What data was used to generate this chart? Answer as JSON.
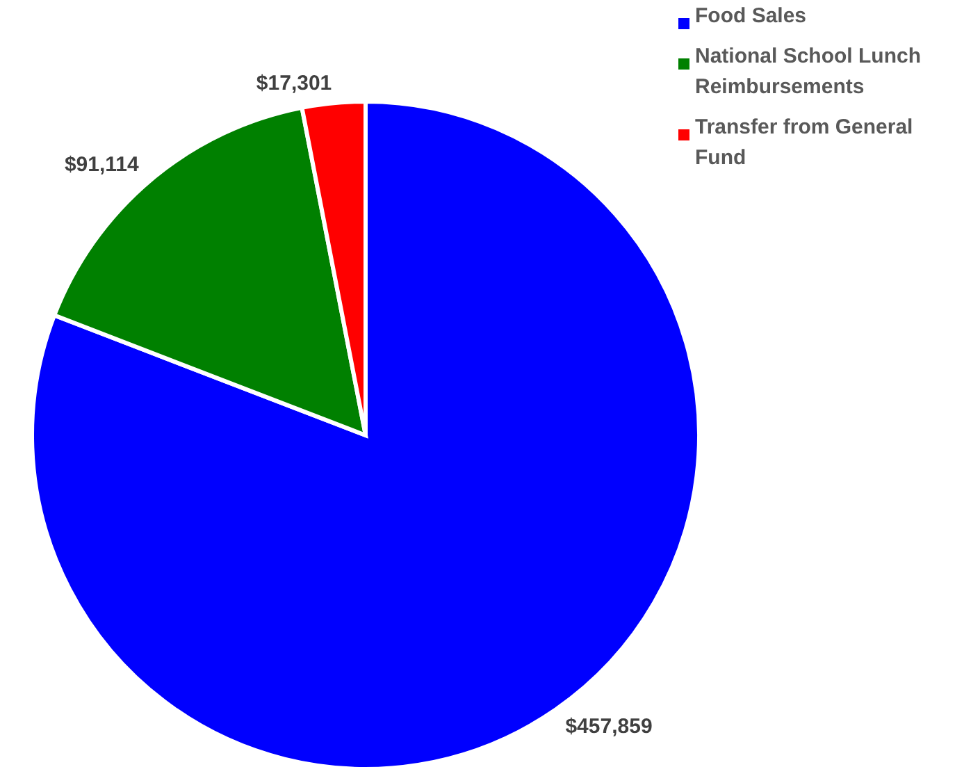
{
  "chart_data": {
    "type": "pie",
    "categories": [
      "Food Sales",
      "National School Lunch Reimbursements",
      "Transfer from General Fund"
    ],
    "values": [
      457859,
      91114,
      17301
    ],
    "colors": [
      "#0000ff",
      "#008000",
      "#ff0000"
    ],
    "value_labels": [
      "$457,859",
      "$91,114",
      "$17,301"
    ],
    "legend": "top right"
  }
}
